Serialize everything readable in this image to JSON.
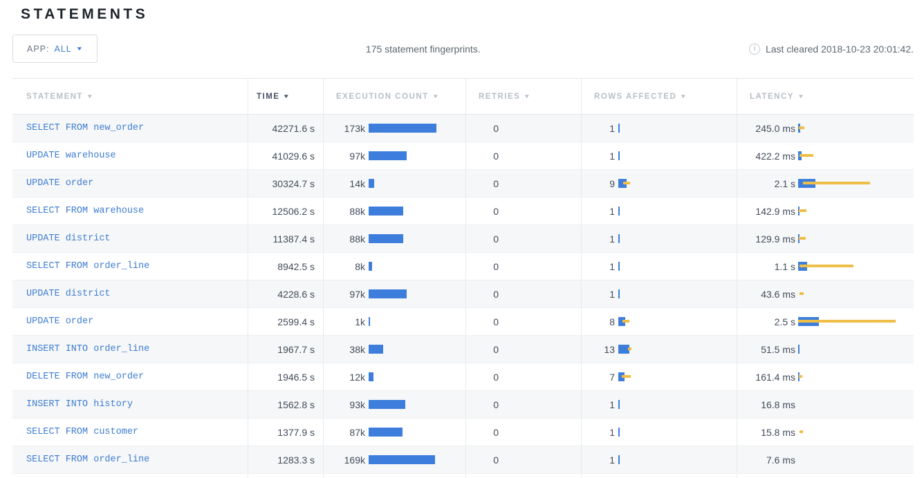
{
  "page": {
    "title": "STATEMENTS"
  },
  "icons": {
    "dropdown": "▼",
    "sort": "▼",
    "info": "i"
  },
  "toolbar": {
    "app_filter": {
      "label": "APP:",
      "value": "ALL"
    },
    "summary": "175 statement fingerprints.",
    "last_cleared": "Last cleared 2018-10-23 20:01:42."
  },
  "colors": {
    "bar_blue": "#3d7edd",
    "bar_yellow": "#efbe48",
    "link_blue": "#3e7dd2"
  },
  "table": {
    "columns": [
      {
        "label": "STATEMENT"
      },
      {
        "label": "TIME"
      },
      {
        "label": "EXECUTION COUNT"
      },
      {
        "label": "RETRIES"
      },
      {
        "label": "ROWS AFFECTED"
      },
      {
        "label": "LATENCY"
      }
    ],
    "sorted_column": "TIME",
    "rows": [
      {
        "stmt": "SELECT FROM new_order",
        "time": "42271.6 s",
        "count": "173k",
        "count_bar": 98,
        "retries": "0",
        "rows": "1",
        "rows_bar": 2,
        "rows_whisker": null,
        "lat": "245.0 ms",
        "lat_bar": 3,
        "lat_whisker": [
          1,
          9
        ]
      },
      {
        "stmt": "UPDATE warehouse",
        "time": "41029.6 s",
        "count": "97k",
        "count_bar": 55,
        "retries": "0",
        "rows": "1",
        "rows_bar": 2,
        "rows_whisker": null,
        "lat": "422.2 ms",
        "lat_bar": 5,
        "lat_whisker": [
          2,
          22
        ]
      },
      {
        "stmt": "UPDATE order",
        "time": "30324.7 s",
        "count": "14k",
        "count_bar": 8,
        "retries": "0",
        "rows": "9",
        "rows_bar": 12,
        "rows_whisker": [
          7,
          17
        ],
        "lat": "2.1 s",
        "lat_bar": 25,
        "lat_whisker": [
          7,
          104
        ]
      },
      {
        "stmt": "SELECT FROM warehouse",
        "time": "12506.2 s",
        "count": "88k",
        "count_bar": 50,
        "retries": "0",
        "rows": "1",
        "rows_bar": 2,
        "rows_whisker": null,
        "lat": "142.9 ms",
        "lat_bar": 2,
        "lat_whisker": [
          1,
          12
        ]
      },
      {
        "stmt": "UPDATE district",
        "time": "11387.4 s",
        "count": "88k",
        "count_bar": 50,
        "retries": "0",
        "rows": "1",
        "rows_bar": 2,
        "rows_whisker": null,
        "lat": "129.9 ms",
        "lat_bar": 2,
        "lat_whisker": [
          1,
          11
        ]
      },
      {
        "stmt": "SELECT FROM order_line",
        "time": "8942.5 s",
        "count": "8k",
        "count_bar": 5,
        "retries": "0",
        "rows": "1",
        "rows_bar": 2,
        "rows_whisker": null,
        "lat": "1.1 s",
        "lat_bar": 13,
        "lat_whisker": [
          2,
          80
        ]
      },
      {
        "stmt": "UPDATE district",
        "time": "4228.6 s",
        "count": "97k",
        "count_bar": 55,
        "retries": "0",
        "rows": "1",
        "rows_bar": 2,
        "rows_whisker": null,
        "lat": "43.6 ms",
        "lat_bar": 0,
        "lat_whisker": [
          2,
          8
        ]
      },
      {
        "stmt": "UPDATE order",
        "time": "2599.4 s",
        "count": "1k",
        "count_bar": 2,
        "retries": "0",
        "rows": "8",
        "rows_bar": 10,
        "rows_whisker": [
          6,
          16
        ],
        "lat": "2.5 s",
        "lat_bar": 30,
        "lat_whisker": [
          0,
          141
        ]
      },
      {
        "stmt": "INSERT INTO order_line",
        "time": "1967.7 s",
        "count": "38k",
        "count_bar": 21,
        "retries": "0",
        "rows": "13",
        "rows_bar": 16,
        "rows_whisker": [
          14,
          19
        ],
        "lat": "51.5 ms",
        "lat_bar": 2,
        "lat_whisker": null
      },
      {
        "stmt": "DELETE FROM new_order",
        "time": "1946.5 s",
        "count": "12k",
        "count_bar": 7,
        "retries": "0",
        "rows": "7",
        "rows_bar": 9,
        "rows_whisker": [
          5,
          18
        ],
        "lat": "161.4 ms",
        "lat_bar": 2,
        "lat_whisker": [
          1,
          6
        ]
      },
      {
        "stmt": "INSERT INTO history",
        "time": "1562.8 s",
        "count": "93k",
        "count_bar": 53,
        "retries": "0",
        "rows": "1",
        "rows_bar": 2,
        "rows_whisker": null,
        "lat": "16.8 ms",
        "lat_bar": 0,
        "lat_whisker": null
      },
      {
        "stmt": "SELECT FROM customer",
        "time": "1377.9 s",
        "count": "87k",
        "count_bar": 49,
        "retries": "0",
        "rows": "1",
        "rows_bar": 2,
        "rows_whisker": null,
        "lat": "15.8 ms",
        "lat_bar": 0,
        "lat_whisker": [
          2,
          7
        ]
      },
      {
        "stmt": "SELECT FROM order_line",
        "time": "1283.3 s",
        "count": "169k",
        "count_bar": 96,
        "retries": "0",
        "rows": "1",
        "rows_bar": 2,
        "rows_whisker": null,
        "lat": "7.6 ms",
        "lat_bar": 0,
        "lat_whisker": null
      }
    ]
  }
}
